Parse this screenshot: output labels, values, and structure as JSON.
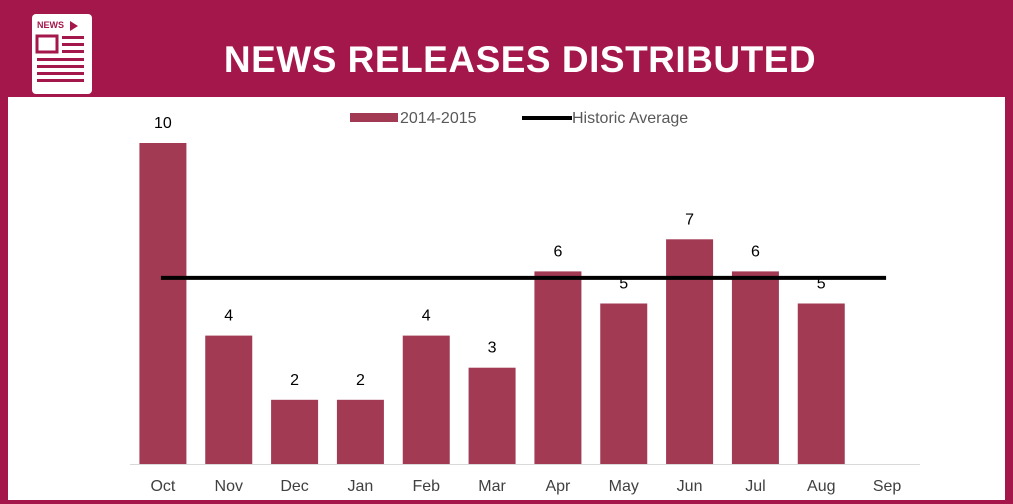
{
  "header": {
    "title": "NEWS RELEASES DISTRIBUTED",
    "icon": "news-document-icon",
    "icon_label": "NEWS"
  },
  "colors": {
    "frame": "#a4174b",
    "bar": "#a23a54",
    "average_line": "#000000"
  },
  "chart_data": {
    "type": "bar",
    "title": "",
    "xlabel": "",
    "ylabel": "",
    "categories": [
      "Oct",
      "Nov",
      "Dec",
      "Jan",
      "Feb",
      "Mar",
      "Apr",
      "May",
      "Jun",
      "Jul",
      "Aug",
      "Sep"
    ],
    "series": [
      {
        "name": "2014-2015",
        "values": [
          10,
          4,
          2,
          2,
          4,
          3,
          6,
          5,
          7,
          6,
          5,
          null
        ],
        "data_labels": [
          "10",
          "4",
          "2",
          "2",
          "4",
          "3",
          "6",
          "5",
          "7",
          "6",
          "5",
          ""
        ]
      }
    ],
    "lines": [
      {
        "name": "Historic Average",
        "value": 5.8
      }
    ],
    "ylim": [
      0,
      10
    ],
    "grid": false,
    "legend": "top-center",
    "y_axis_visible": false
  }
}
